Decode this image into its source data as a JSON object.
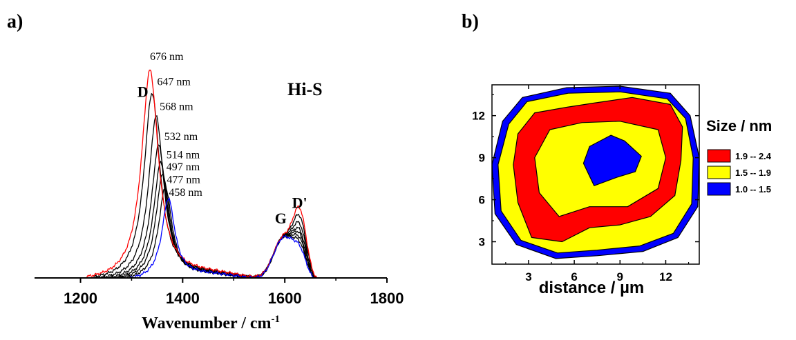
{
  "panels": {
    "a": {
      "panel_label": "a)",
      "sample_label": "Hi-S",
      "xlabel": "Wavenumber / cm",
      "xlabel_sup": "-1",
      "band_labels": [
        {
          "text": "D",
          "x": 1322,
          "y": 0.93
        },
        {
          "text": "G",
          "x": 1592,
          "y": 0.28
        },
        {
          "text": "D'",
          "x": 1629,
          "y": 0.36
        }
      ],
      "peak_labels": [
        {
          "text": "676 nm",
          "x": 1336,
          "y": 1.12
        },
        {
          "text": "647 nm",
          "x": 1350,
          "y": 0.99
        },
        {
          "text": "568 nm",
          "x": 1355,
          "y": 0.862
        },
        {
          "text": "532 nm",
          "x": 1364,
          "y": 0.708
        },
        {
          "text": "514 nm",
          "x": 1368,
          "y": 0.614
        },
        {
          "text": "497 nm",
          "x": 1368,
          "y": 0.552
        },
        {
          "text": "477 nm",
          "x": 1369,
          "y": 0.488
        },
        {
          "text": "458 nm",
          "x": 1373,
          "y": 0.422
        }
      ]
    },
    "b": {
      "panel_label": "b)",
      "xlabel": "distance / µm",
      "legend_title": "Size / nm",
      "legend": [
        {
          "label": "1.9 -- 2.4",
          "color": "#ff0000"
        },
        {
          "label": "1.5 -- 1.9",
          "color": "#ffff00"
        },
        {
          "label": "1.0 -- 1.5",
          "color": "#0000ff"
        }
      ]
    }
  },
  "chart_data": [
    {
      "type": "line",
      "title": "Hi-S",
      "xlabel": "Wavenumber / cm-1",
      "ylabel": "",
      "xlim": [
        1110,
        1800
      ],
      "ylim": [
        0,
        1.18
      ],
      "xticks": [
        1200,
        1400,
        1600,
        1800
      ],
      "y_ticks_shown": false,
      "series": [
        {
          "name": "676 nm",
          "color": "#ff0000",
          "D_pos": 1336,
          "D_int": 1.08,
          "D_w": 40,
          "G_pos": 1598,
          "G_int": 0.22,
          "Dp_pos": 1630,
          "Dp_int": 0.31
        },
        {
          "name": "647 nm",
          "color": "#000000",
          "D_pos": 1340,
          "D_int": 0.96,
          "D_w": 38,
          "G_pos": 1598,
          "G_int": 0.22,
          "Dp_pos": 1630,
          "Dp_int": 0.27
        },
        {
          "name": "568 nm",
          "color": "#000000",
          "D_pos": 1348,
          "D_int": 0.84,
          "D_w": 36,
          "G_pos": 1598,
          "G_int": 0.22,
          "Dp_pos": 1630,
          "Dp_int": 0.23
        },
        {
          "name": "532 nm",
          "color": "#000000",
          "D_pos": 1353,
          "D_int": 0.69,
          "D_w": 35,
          "G_pos": 1598,
          "G_int": 0.22,
          "Dp_pos": 1630,
          "Dp_int": 0.2
        },
        {
          "name": "514 nm",
          "color": "#000000",
          "D_pos": 1357,
          "D_int": 0.6,
          "D_w": 34,
          "G_pos": 1598,
          "G_int": 0.22,
          "Dp_pos": 1630,
          "Dp_int": 0.18
        },
        {
          "name": "497 nm",
          "color": "#000000",
          "D_pos": 1361,
          "D_int": 0.54,
          "D_w": 33,
          "G_pos": 1598,
          "G_int": 0.22,
          "Dp_pos": 1630,
          "Dp_int": 0.16
        },
        {
          "name": "477 nm",
          "color": "#000000",
          "D_pos": 1366,
          "D_int": 0.47,
          "D_w": 32,
          "G_pos": 1598,
          "G_int": 0.22,
          "Dp_pos": 1630,
          "Dp_int": 0.14
        },
        {
          "name": "458 nm",
          "color": "#0000ff",
          "D_pos": 1372,
          "D_int": 0.41,
          "D_w": 31,
          "G_pos": 1598,
          "G_int": 0.22,
          "Dp_pos": 1630,
          "Dp_int": 0.12
        }
      ]
    },
    {
      "type": "heatmap",
      "xlabel": "distance / µm",
      "ylabel": "",
      "xlim": [
        0.6,
        14.2
      ],
      "ylim": [
        1.4,
        14.2
      ],
      "xticks": [
        3,
        6,
        9,
        12
      ],
      "yticks": [
        3,
        6,
        9,
        12
      ],
      "legend_title": "Size / nm",
      "levels": [
        {
          "range": "1.9 -- 2.4",
          "color": "#ff0000"
        },
        {
          "range": "1.5 -- 1.9",
          "color": "#ffff00"
        },
        {
          "range": "1.0 -- 1.5",
          "color": "#0000ff"
        }
      ],
      "regions": [
        {
          "level": "1.0 -- 1.5",
          "color": "#0000ff",
          "shape": "outer ring",
          "points": [
            [
              4.8,
              1.8
            ],
            [
              7.5,
              2.0
            ],
            [
              10.5,
              2.3
            ],
            [
              12.8,
              3.3
            ],
            [
              14.1,
              5.5
            ],
            [
              14.2,
              9.0
            ],
            [
              13.6,
              12.0
            ],
            [
              12.3,
              13.6
            ],
            [
              9.0,
              14.1
            ],
            [
              5.5,
              14.0
            ],
            [
              2.6,
              13.3
            ],
            [
              1.3,
              11.6
            ],
            [
              0.6,
              8.5
            ],
            [
              0.8,
              5.0
            ],
            [
              2.2,
              2.8
            ]
          ]
        },
        {
          "level": "1.5 -- 1.9",
          "color": "#ffff00",
          "shape": "body",
          "points": [
            [
              4.9,
              2.2
            ],
            [
              7.5,
              2.4
            ],
            [
              10.3,
              2.7
            ],
            [
              12.5,
              3.6
            ],
            [
              13.7,
              5.7
            ],
            [
              13.8,
              9.0
            ],
            [
              13.3,
              11.8
            ],
            [
              12.1,
              13.2
            ],
            [
              9.0,
              13.7
            ],
            [
              5.6,
              13.6
            ],
            [
              2.9,
              13.0
            ],
            [
              1.7,
              11.4
            ],
            [
              1.0,
              8.5
            ],
            [
              1.2,
              5.2
            ],
            [
              2.5,
              3.1
            ]
          ]
        },
        {
          "level": "1.9 -- 2.4",
          "color": "#ff0000",
          "shape": "ring",
          "points": [
            [
              3.2,
              3.3
            ],
            [
              5.2,
              3.0
            ],
            [
              7.0,
              4.0
            ],
            [
              9.0,
              4.2
            ],
            [
              11.0,
              4.8
            ],
            [
              12.6,
              6.3
            ],
            [
              13.0,
              8.8
            ],
            [
              13.1,
              11.2
            ],
            [
              12.3,
              12.8
            ],
            [
              9.8,
              13.3
            ],
            [
              7.3,
              12.9
            ],
            [
              5.5,
              12.6
            ],
            [
              3.4,
              12.2
            ],
            [
              2.3,
              10.7
            ],
            [
              2.0,
              8.5
            ],
            [
              2.3,
              5.8
            ]
          ]
        },
        {
          "level": "1.5 -- 1.9",
          "color": "#ffff00",
          "shape": "inner",
          "points": [
            [
              5.0,
              4.8
            ],
            [
              7.0,
              5.5
            ],
            [
              9.5,
              5.5
            ],
            [
              11.5,
              6.8
            ],
            [
              12.0,
              9.0
            ],
            [
              11.5,
              11.0
            ],
            [
              9.0,
              11.6
            ],
            [
              6.5,
              11.5
            ],
            [
              4.4,
              11.0
            ],
            [
              3.4,
              9.0
            ],
            [
              3.7,
              6.5
            ]
          ]
        },
        {
          "level": "1.0 -- 1.5",
          "color": "#0000ff",
          "shape": "center",
          "points": [
            [
              7.3,
              7.0
            ],
            [
              8.8,
              7.6
            ],
            [
              10.0,
              8.0
            ],
            [
              10.4,
              9.1
            ],
            [
              9.3,
              10.2
            ],
            [
              8.4,
              10.6
            ],
            [
              7.0,
              9.8
            ],
            [
              6.6,
              8.6
            ]
          ]
        }
      ]
    }
  ]
}
